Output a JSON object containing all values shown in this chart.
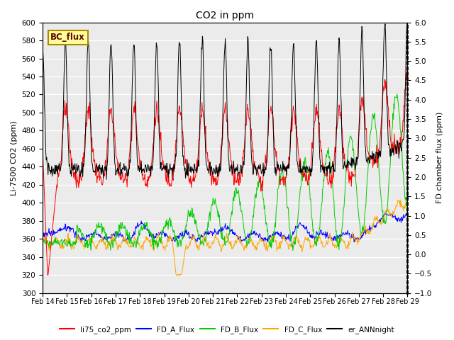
{
  "title": "CO2 in ppm",
  "ylabel_left": "Li-7500 CO2 (ppm)",
  "ylabel_right": "FD chamber flux (ppm)",
  "ylim_left": [
    300,
    600
  ],
  "ylim_right": [
    -1.0,
    6.0
  ],
  "yticks_left": [
    300,
    320,
    340,
    360,
    380,
    400,
    420,
    440,
    460,
    480,
    500,
    520,
    540,
    560,
    580,
    600
  ],
  "yticks_right": [
    -1.0,
    -0.5,
    0.0,
    0.5,
    1.0,
    1.5,
    2.0,
    2.5,
    3.0,
    3.5,
    4.0,
    4.5,
    5.0,
    5.5,
    6.0
  ],
  "xtick_labels": [
    "Feb 14",
    "Feb 15",
    "Feb 16",
    "Feb 17",
    "Feb 18",
    "Feb 19",
    "Feb 20",
    "Feb 21",
    "Feb 22",
    "Feb 23",
    "Feb 24",
    "Feb 25",
    "Feb 26",
    "Feb 27",
    "Feb 28",
    "Feb 29"
  ],
  "colors": {
    "li75": "#ff0000",
    "FD_A": "#0000ff",
    "FD_B": "#00cc00",
    "FD_C": "#ffa500",
    "er_ANN": "#000000"
  },
  "legend_labels": [
    "li75_co2_ppm",
    "FD_A_Flux",
    "FD_B_Flux",
    "FD_C_Flux",
    "er_ANNnight"
  ],
  "bc_flux_box_facecolor": "#ffff99",
  "bc_flux_box_edgecolor": "#aa8800",
  "bc_flux_text": "BC_flux",
  "bc_flux_textcolor": "#660000",
  "background_color": "#ebebeb",
  "grid_color": "#ffffff",
  "n_points": 800
}
